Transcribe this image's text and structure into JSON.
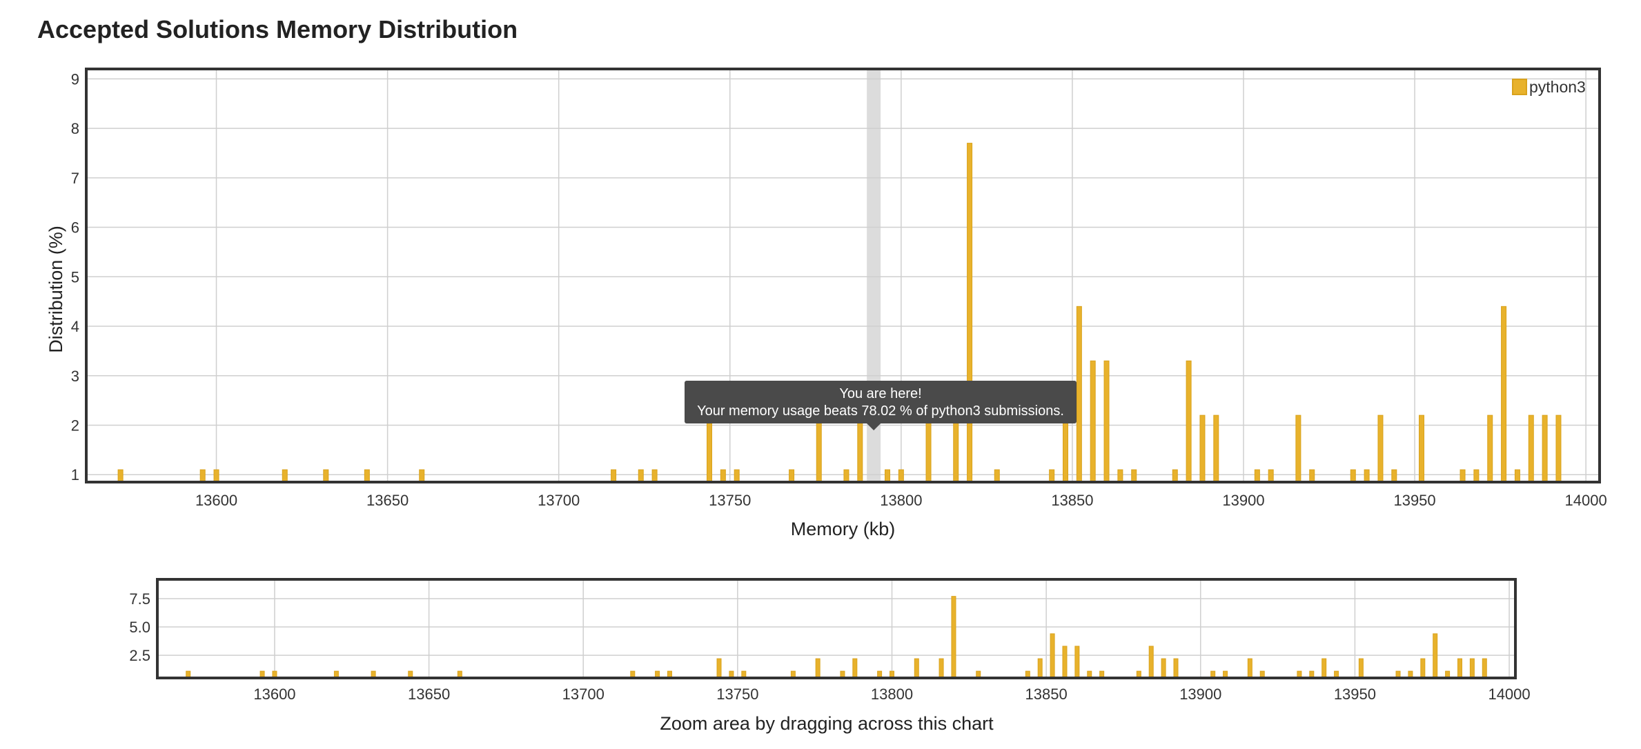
{
  "page": {
    "title": "Accepted Solutions Memory Distribution"
  },
  "colors": {
    "bar_fill": "#e8b22c",
    "bar_stroke": "#d9a21c",
    "grid": "#cfcfcf",
    "frame": "#333333",
    "highlight": "#dcdcdc",
    "tooltip_bg": "#4a4a4a"
  },
  "chart_data": [
    {
      "type": "bar",
      "role": "main",
      "title": "Accepted Solutions Memory Distribution",
      "xlabel": "Memory (kb)",
      "ylabel": "Distribution (%)",
      "xlim": [
        13562,
        14004
      ],
      "ylim": [
        0.85,
        9.2
      ],
      "xticks": [
        13600,
        13650,
        13700,
        13750,
        13800,
        13850,
        13900,
        13950,
        14000
      ],
      "yticks": [
        1,
        2,
        3,
        4,
        5,
        6,
        7,
        8,
        9
      ],
      "grid": true,
      "legend": {
        "position": "top-right",
        "entries": [
          "python3"
        ]
      },
      "highlight_x": 13792,
      "tooltip": {
        "line1": "You are here!",
        "line2": "Your memory usage beats 78.02 % of python3 submissions."
      },
      "series": [
        {
          "name": "python3",
          "points": [
            [
              13572,
              1.1
            ],
            [
              13596,
              1.1
            ],
            [
              13600,
              1.1
            ],
            [
              13620,
              1.1
            ],
            [
              13632,
              1.1
            ],
            [
              13644,
              1.1
            ],
            [
              13660,
              1.1
            ],
            [
              13716,
              1.1
            ],
            [
              13724,
              1.1
            ],
            [
              13728,
              1.1
            ],
            [
              13744,
              2.2
            ],
            [
              13748,
              1.1
            ],
            [
              13752,
              1.1
            ],
            [
              13768,
              1.1
            ],
            [
              13776,
              2.2
            ],
            [
              13784,
              1.1
            ],
            [
              13788,
              2.2
            ],
            [
              13796,
              1.1
            ],
            [
              13800,
              1.1
            ],
            [
              13808,
              2.2
            ],
            [
              13816,
              2.2
            ],
            [
              13820,
              7.7
            ],
            [
              13828,
              1.1
            ],
            [
              13844,
              1.1
            ],
            [
              13848,
              2.2
            ],
            [
              13852,
              4.4
            ],
            [
              13856,
              3.3
            ],
            [
              13860,
              3.3
            ],
            [
              13864,
              1.1
            ],
            [
              13868,
              1.1
            ],
            [
              13880,
              1.1
            ],
            [
              13884,
              3.3
            ],
            [
              13888,
              2.2
            ],
            [
              13892,
              2.2
            ],
            [
              13904,
              1.1
            ],
            [
              13908,
              1.1
            ],
            [
              13916,
              2.2
            ],
            [
              13920,
              1.1
            ],
            [
              13932,
              1.1
            ],
            [
              13936,
              1.1
            ],
            [
              13940,
              2.2
            ],
            [
              13944,
              1.1
            ],
            [
              13952,
              2.2
            ],
            [
              13964,
              1.1
            ],
            [
              13968,
              1.1
            ],
            [
              13972,
              2.2
            ],
            [
              13976,
              4.4
            ],
            [
              13980,
              1.1
            ],
            [
              13984,
              2.2
            ],
            [
              13988,
              2.2
            ],
            [
              13992,
              2.2
            ]
          ]
        }
      ]
    },
    {
      "type": "bar",
      "role": "navigator",
      "caption": "Zoom area by dragging across this chart",
      "xlim": [
        13562,
        14002
      ],
      "ylim": [
        0.5,
        9.2
      ],
      "xticks": [
        13600,
        13650,
        13700,
        13750,
        13800,
        13850,
        13900,
        13950,
        14000
      ],
      "yticks": [
        2.5,
        5.0,
        7.5
      ],
      "ytick_labels": [
        "2.5",
        "5.0",
        "7.5"
      ],
      "grid": true
    }
  ]
}
